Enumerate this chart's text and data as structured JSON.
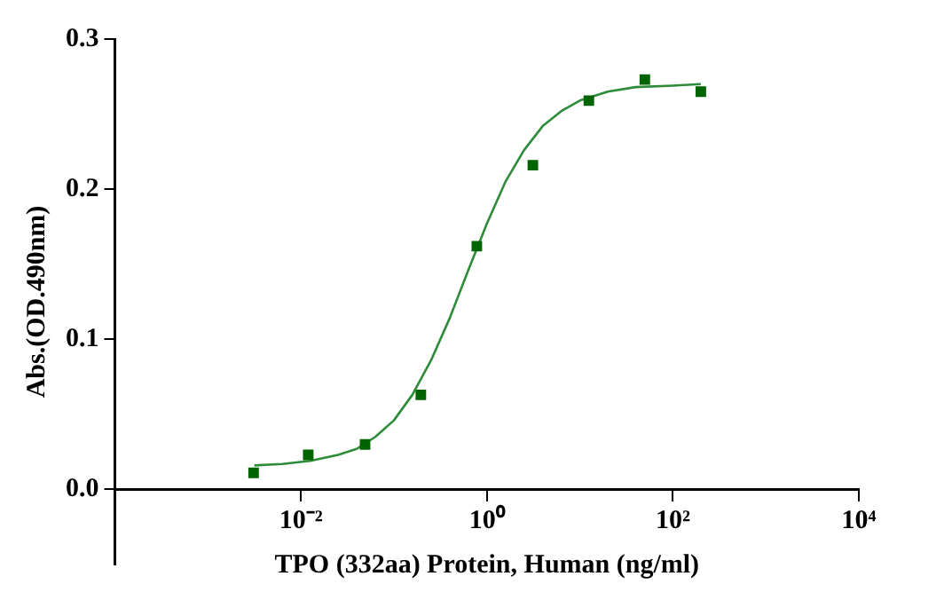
{
  "chart_data": {
    "type": "scatter",
    "xlabel": "TPO (332aa) Protein, Human (ng/ml)",
    "ylabel": "Abs.(OD.490nm)",
    "log": "x",
    "grid": false,
    "legend": false,
    "marker": "square",
    "xlim": [
      0.0001,
      10000
    ],
    "xticks": [
      {
        "value": 0.01,
        "label": "10⁻²"
      },
      {
        "value": 1,
        "label": "10⁰"
      },
      {
        "value": 100,
        "label": "10²"
      },
      {
        "value": 10000,
        "label": "10⁴"
      }
    ],
    "ylim": [
      -0.05,
      0.3
    ],
    "yticks": [
      {
        "value": 0,
        "label": "0.0"
      },
      {
        "value": 0.1,
        "label": "0.1"
      },
      {
        "value": 0.2,
        "label": "0.2"
      },
      {
        "value": 0.3,
        "label": "0.3"
      }
    ],
    "series": [
      {
        "type": "scatter",
        "color": "#006400",
        "x": [
          0.0031,
          0.012,
          0.049,
          0.195,
          0.78,
          3.125,
          12.5,
          50,
          200
        ],
        "values": [
          0.011,
          0.023,
          0.03,
          0.063,
          0.162,
          0.216,
          0.259,
          0.273,
          0.265
        ]
      },
      {
        "type": "line",
        "color": "#2e8b3a",
        "marker": "none",
        "line_style": "solid",
        "x": [
          0.00316,
          0.00631,
          0.0126,
          0.0251,
          0.0398,
          0.0631,
          0.1,
          0.158,
          0.251,
          0.398,
          0.631,
          1,
          1.585,
          2.512,
          3.981,
          6.31,
          10,
          19.95,
          39.81,
          100,
          199.5
        ],
        "values": [
          0.016,
          0.017,
          0.019,
          0.023,
          0.027,
          0.035,
          0.046,
          0.063,
          0.086,
          0.114,
          0.146,
          0.177,
          0.205,
          0.226,
          0.242,
          0.252,
          0.259,
          0.265,
          0.268,
          0.269,
          0.27
        ]
      }
    ]
  }
}
